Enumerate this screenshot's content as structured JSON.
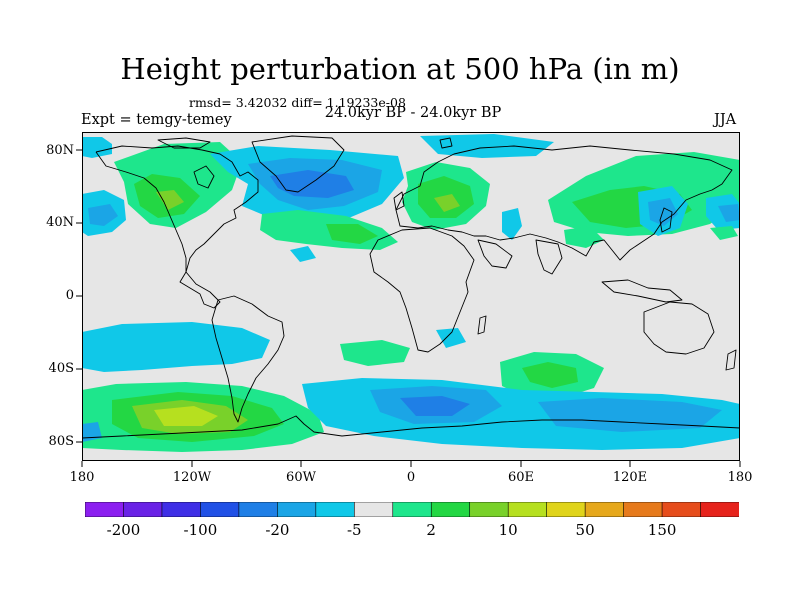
{
  "title": "Height perturbation at 500 hPa (in m)",
  "stats": "rmsd= 3.42032 diff= 1.19233e-08",
  "expt": "Expt = temgy-temey",
  "period": "24.0kyr BP - 24.0kyr BP",
  "season": "JJA",
  "axes": {
    "lat_labels": [
      "80N",
      "40N",
      "0",
      "40S",
      "80S"
    ],
    "lon_labels": [
      "180",
      "120W",
      "60W",
      "0",
      "60E",
      "120E",
      "180"
    ]
  },
  "colorbar": {
    "colors": [
      "#8c1ff0",
      "#6a22e6",
      "#3f2fe6",
      "#2151e6",
      "#1f7fe6",
      "#1ba5e6",
      "#10c8e8",
      "#e6e6e6",
      "#1ee68c",
      "#23d744",
      "#79d12a",
      "#b6e01f",
      "#e0d41b",
      "#e6a81c",
      "#e67a1c",
      "#e64d1c",
      "#e6231c"
    ],
    "labels": [
      "-200",
      "-100",
      "-20",
      "-5",
      "2",
      "10",
      "50",
      "150"
    ]
  },
  "map_colors": {
    "background": "#e6e6e6",
    "cyan": "#10c8e8",
    "light_blue": "#1ba5e6",
    "blue": "#1f7fe6",
    "green_light": "#1ee68c",
    "green": "#23d744",
    "yellow_green": "#b6e01f"
  }
}
